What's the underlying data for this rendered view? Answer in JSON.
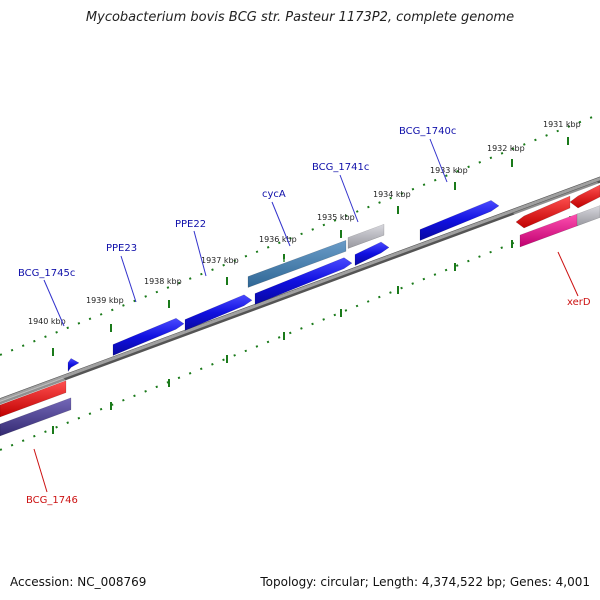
{
  "title": "Mycobacterium bovis BCG str. Pasteur 1173P2, complete genome",
  "footer": {
    "accession": "Accession: NC_008769",
    "stats": "Topology: circular; Length: 4,374,522 bp; Genes: 4,001"
  },
  "colors": {
    "backbone": "#808080",
    "tick": "#1a7a1a",
    "forward_label": "#1010aa",
    "reverse_label": "#cc1111",
    "label_line_forward": "#3333cc",
    "label_line_reverse": "#cc1111"
  },
  "ticks": [
    {
      "label": "1931 kbp"
    },
    {
      "label": "1932 kbp"
    },
    {
      "label": "1933 kbp"
    },
    {
      "label": "1934 kbp"
    },
    {
      "label": "1935 kbp"
    },
    {
      "label": "1936 kbp"
    },
    {
      "label": "1937 kbp"
    },
    {
      "label": "1938 kbp"
    },
    {
      "label": "1939 kbp"
    },
    {
      "label": "1940 kbp"
    }
  ],
  "genes": [
    {
      "id": "BCG_1740c",
      "label": "BCG_1740c",
      "strand": "forward",
      "color": "#1010e0"
    },
    {
      "id": "BCG_1741c",
      "label": "BCG_1741c",
      "strand": "forward",
      "color": "#1010e0"
    },
    {
      "id": "gray_feature",
      "label": "",
      "strand": "forward",
      "color": "#b0b0b8"
    },
    {
      "id": "cycA",
      "label": "cycA",
      "strand": "forward",
      "color": "#3f7fb0"
    },
    {
      "id": "PPE22",
      "label": "PPE22",
      "strand": "forward",
      "color": "#1010e0"
    },
    {
      "id": "PPE23",
      "label": "PPE23",
      "strand": "forward",
      "color": "#1010e0"
    },
    {
      "id": "BCG_1745c",
      "label": "BCG_1745c",
      "strand": "forward",
      "color": "#1010e0"
    },
    {
      "id": "xerD",
      "label": "xerD",
      "strand": "reverse",
      "color": "#e01090"
    },
    {
      "id": "BCG_1746",
      "label": "BCG_1746",
      "strand": "reverse",
      "color": "#4a3f8f"
    }
  ]
}
